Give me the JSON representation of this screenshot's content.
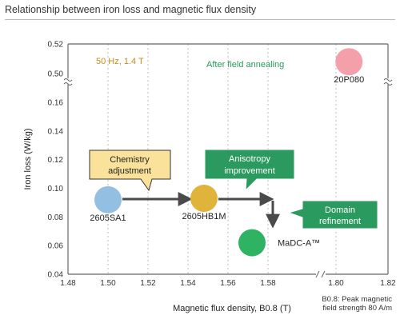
{
  "title": "Relationship between iron loss and magnetic flux density",
  "chart_data": {
    "type": "scatter",
    "xlabel": "Magnetic flux density, B0.8 (T)",
    "ylabel": "Iron loss (W/kg)",
    "xlim": [
      1.48,
      1.82
    ],
    "ylim_lower": [
      0.04,
      0.16
    ],
    "ylim_upper": [
      0.5,
      0.52
    ],
    "axis_break": true,
    "x_ticks": [
      "1.48",
      "1.50",
      "1.52",
      "1.54",
      "1.56",
      "1.58",
      "1.80",
      "1.82"
    ],
    "y_ticks": [
      "0.04",
      "0.06",
      "0.08",
      "0.10",
      "0.12",
      "0.14",
      "0.16",
      "0.50",
      "0.52"
    ],
    "grid": "vertical",
    "points": [
      {
        "label": "2605SA1",
        "x": 1.5,
        "y": 0.092,
        "color": "#93bfe3"
      },
      {
        "label": "2605HB1M",
        "x": 1.548,
        "y": 0.093,
        "color": "#e0b43a"
      },
      {
        "label": "MaDC-A™",
        "x": 1.572,
        "y": 0.062,
        "color": "#2db362"
      },
      {
        "label": "20P080",
        "x": 1.805,
        "y": 0.508,
        "color": "#f3a0ab"
      }
    ],
    "annotations": {
      "condition": "50 Hz, 1.4 T",
      "after_annealing": "After field annealing",
      "chemistry_line1": "Chemistry",
      "chemistry_line2": "adjustment",
      "anisotropy_line1": "Anisotropy",
      "anisotropy_line2": "improvement",
      "domain_line1": "Domain",
      "domain_line2": "refinement"
    },
    "colors": {
      "condition": "#c98a1e",
      "green": "#2a9a5e",
      "box_yellow": "#fbe29a",
      "axis": "#666666",
      "grid": "#bdbdbd",
      "arrow": "#4a4a4a"
    }
  },
  "footnote": {
    "line1": "B0.8: Peak magnetic",
    "line2": "field strength 80 A/m"
  }
}
